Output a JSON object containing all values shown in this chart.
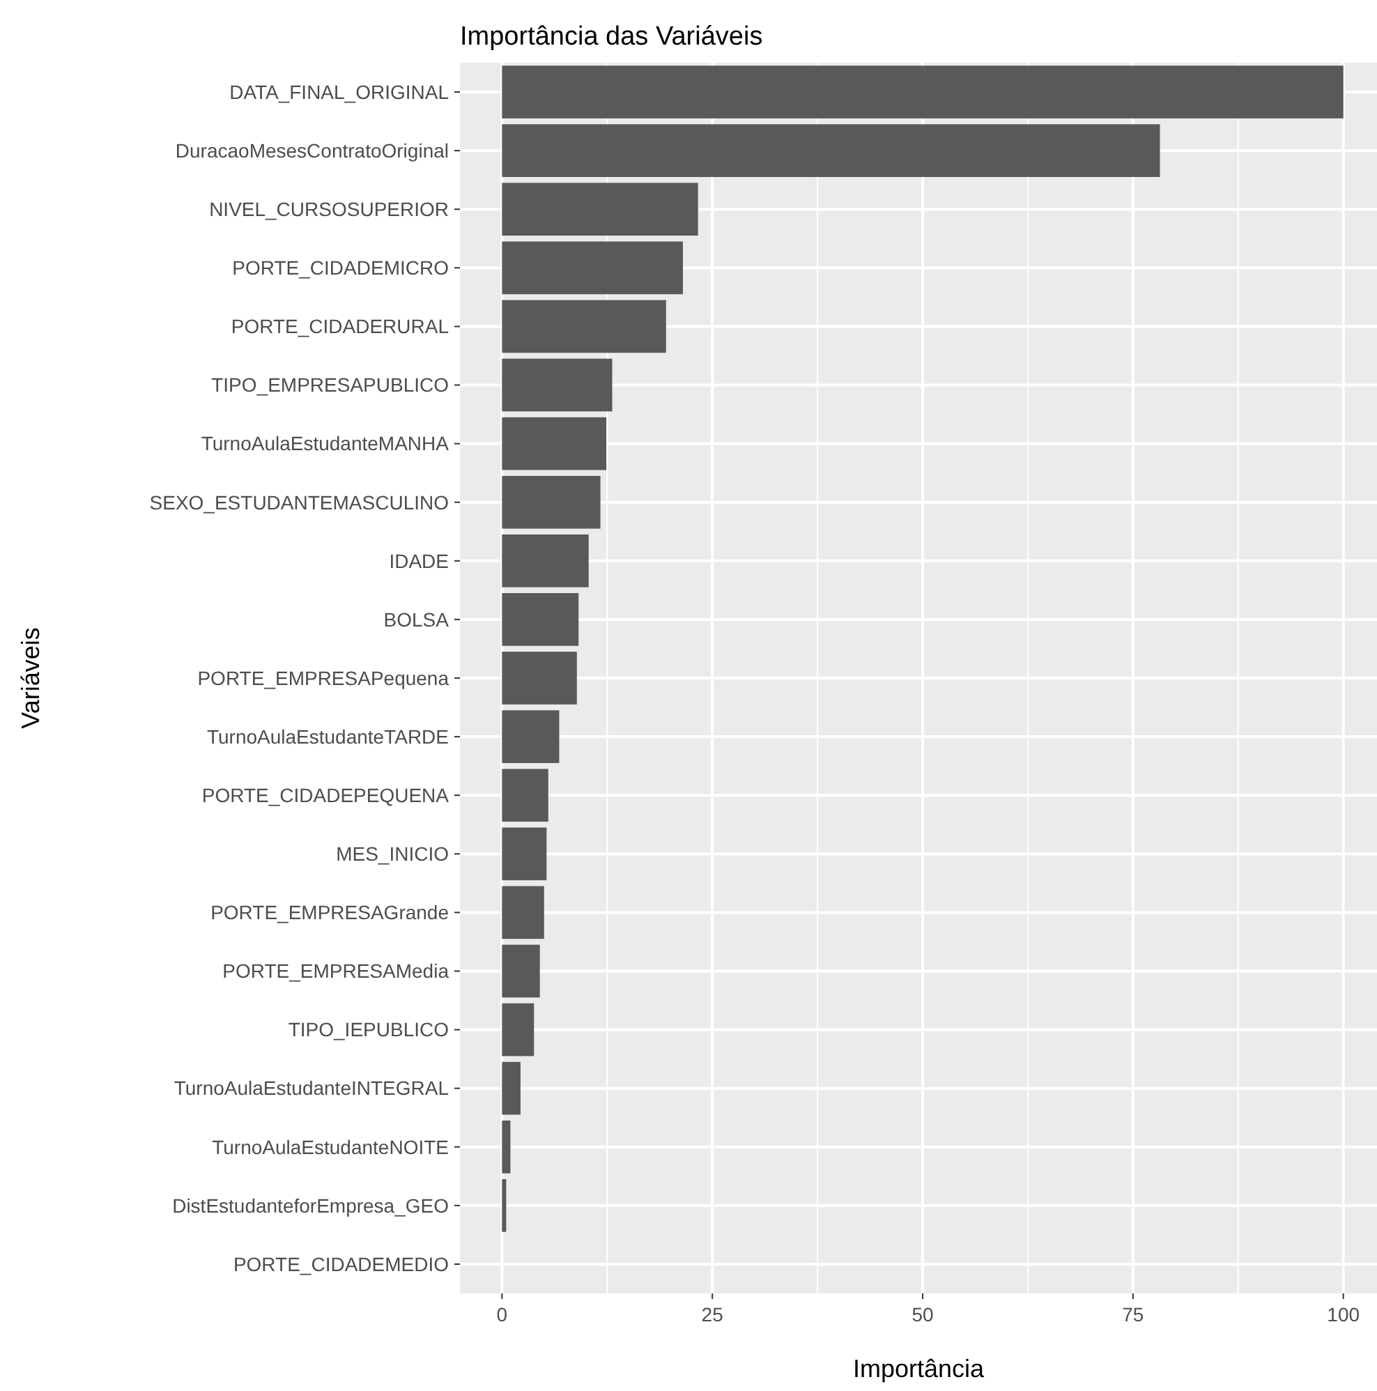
{
  "chart_data": {
    "type": "bar",
    "orientation": "horizontal",
    "title": "Importância das Variáveis",
    "xlabel": "Importância",
    "ylabel": "Variáveis",
    "categories": [
      "DATA_FINAL_ORIGINAL",
      "DuracaoMesesContratoOriginal",
      "NIVEL_CURSOSUPERIOR",
      "PORTE_CIDADEMICRO",
      "PORTE_CIDADERURAL",
      "TIPO_EMPRESAPUBLICO",
      "TurnoAulaEstudanteMANHA",
      "SEXO_ESTUDANTEMASCULINO",
      "IDADE",
      "BOLSA",
      "PORTE_EMPRESAPequena",
      "TurnoAulaEstudanteTARDE",
      "PORTE_CIDADEPEQUENA",
      "MES_INICIO",
      "PORTE_EMPRESAGrande",
      "PORTE_EMPRESAMedia",
      "TIPO_IEPUBLICO",
      "TurnoAulaEstudanteINTEGRAL",
      "TurnoAulaEstudanteNOITE",
      "DistEstudanteforEmpresa_GEO",
      "PORTE_CIDADEMEDIO"
    ],
    "values": [
      100,
      78.2,
      23.3,
      21.5,
      19.5,
      13.1,
      12.4,
      11.7,
      10.3,
      9.1,
      8.9,
      6.8,
      5.5,
      5.3,
      5.0,
      4.5,
      3.8,
      2.2,
      1.0,
      0.5,
      0
    ],
    "color": "#595959",
    "xlim": [
      -5,
      104
    ],
    "xticks": [
      0,
      25,
      50,
      75,
      100
    ],
    "grid": true
  }
}
